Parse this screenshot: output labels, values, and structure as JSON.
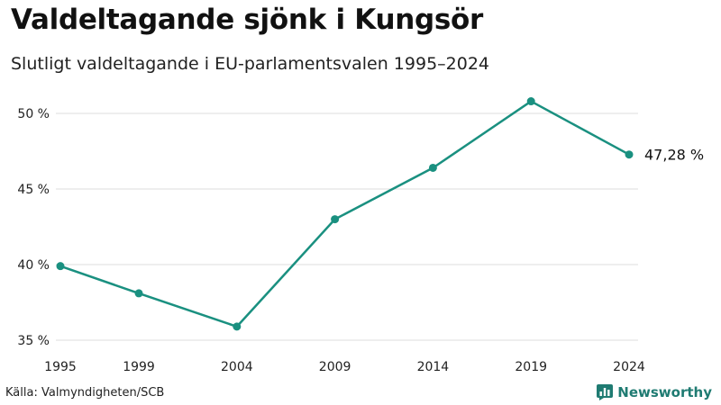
{
  "title": "Valdeltagande sjönk i Kungsör",
  "subtitle": "Slutligt valdeltagande i EU-parlamentsvalen 1995–2024",
  "source": "Källa: Valmyndigheten/SCB",
  "brand": {
    "name": "Newsworthy",
    "icon": "bar-chart-logo-icon",
    "color": "#1f7b72"
  },
  "colors": {
    "line": "#1a9080",
    "grid": "#dddddd"
  },
  "chart_data": {
    "type": "line",
    "x": [
      1995,
      1999,
      2004,
      2009,
      2014,
      2019,
      2024
    ],
    "series": [
      {
        "values": [
          39.9,
          38.1,
          35.9,
          43.0,
          46.4,
          50.8,
          47.28
        ]
      }
    ],
    "ylim": [
      35,
      51
    ],
    "yticks": [
      35,
      40,
      45,
      50
    ],
    "ytick_labels": [
      "35 %",
      "40 %",
      "45 %",
      "50 %"
    ],
    "xticks": [
      1995,
      1999,
      2004,
      2009,
      2014,
      2019,
      2024
    ],
    "xtick_labels": [
      "1995",
      "1999",
      "2004",
      "2009",
      "2014",
      "2019",
      "2024"
    ],
    "end_label": "47,28 %",
    "grid": true,
    "xlabel": "",
    "ylabel": ""
  }
}
